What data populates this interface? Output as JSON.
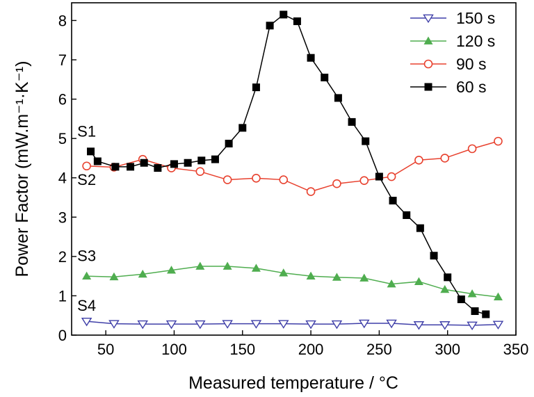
{
  "chart_data": {
    "type": "line",
    "xlabel": "Measured temperature / °C",
    "ylabel": "Power Factor (mW.m⁻¹·K⁻¹)",
    "xlim": [
      25,
      350
    ],
    "ylim": [
      0,
      8.45
    ],
    "xticks": [
      50,
      100,
      150,
      200,
      250,
      300,
      350
    ],
    "yticks": [
      0,
      1,
      2,
      3,
      4,
      5,
      6,
      7,
      8
    ],
    "grid": false,
    "legend_position": "top-right",
    "series": [
      {
        "name": "150 s",
        "color": "#3f3fa8",
        "marker": "triangle-down-open",
        "x": [
          36,
          56,
          77,
          98,
          119,
          139,
          160,
          180,
          200,
          219,
          239,
          259,
          279,
          298,
          318,
          337
        ],
        "y": [
          0.35,
          0.29,
          0.28,
          0.28,
          0.28,
          0.29,
          0.29,
          0.29,
          0.28,
          0.28,
          0.3,
          0.3,
          0.26,
          0.26,
          0.25,
          0.27
        ]
      },
      {
        "name": "120 s",
        "color": "#4fad4f",
        "marker": "triangle-up-filled",
        "x": [
          36,
          56,
          77,
          98,
          119,
          139,
          160,
          180,
          200,
          219,
          239,
          259,
          279,
          298,
          318,
          337
        ],
        "y": [
          1.5,
          1.48,
          1.55,
          1.65,
          1.75,
          1.75,
          1.7,
          1.58,
          1.5,
          1.47,
          1.45,
          1.3,
          1.36,
          1.16,
          1.05,
          0.97
        ]
      },
      {
        "name": "90 s",
        "color": "#e8412e",
        "marker": "circle-open",
        "x": [
          36,
          56,
          77,
          98,
          119,
          139,
          160,
          180,
          200,
          219,
          239,
          259,
          279,
          298,
          318,
          337
        ],
        "y": [
          4.3,
          4.27,
          4.47,
          4.25,
          4.16,
          3.95,
          3.99,
          3.95,
          3.65,
          3.85,
          3.93,
          4.03,
          4.45,
          4.5,
          4.74,
          4.93
        ]
      },
      {
        "name": "60 s",
        "color": "#000000",
        "marker": "square-filled",
        "x": [
          39,
          44,
          57,
          68,
          78,
          88,
          100,
          110,
          120,
          130,
          140,
          150,
          160,
          170,
          180,
          190,
          200,
          210,
          220,
          230,
          240,
          250,
          260,
          270,
          280,
          290,
          300,
          310,
          320,
          328
        ],
        "y": [
          4.67,
          4.42,
          4.28,
          4.28,
          4.38,
          4.25,
          4.35,
          4.38,
          4.44,
          4.47,
          4.87,
          5.27,
          6.3,
          7.87,
          8.15,
          7.98,
          7.05,
          6.55,
          6.03,
          5.42,
          4.93,
          4.03,
          3.42,
          3.05,
          2.72,
          2.02,
          1.47,
          0.91,
          0.61,
          0.53
        ]
      }
    ],
    "annotations": [
      {
        "text": "S1",
        "x": 36,
        "y": 5.05
      },
      {
        "text": "S2",
        "x": 36,
        "y": 3.82
      },
      {
        "text": "S3",
        "x": 36,
        "y": 1.88
      },
      {
        "text": "S4",
        "x": 36,
        "y": 0.62
      }
    ]
  }
}
